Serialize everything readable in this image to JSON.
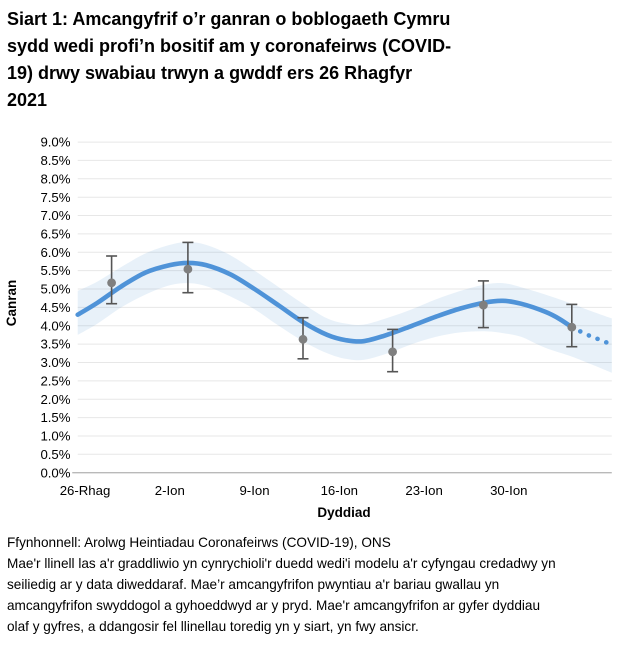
{
  "header": {
    "title_lines": [
      "Siart 1: Amcangyfrif o’r ganran o boblogaeth Cymru",
      "sydd wedi profi’n bositif am y coronafeirws (COVID-",
      "19) drwy swabiau trwyn a gwddf ers 26 Rhagfyr",
      "2021"
    ]
  },
  "chart_data": {
    "type": "line",
    "title": "Siart 1: Amcangyfrif o’r ganran o boblogaeth Cymru sydd wedi profi’n bositif am y coronafeirws (COVID-19) drwy swabiau trwyn a gwddf ers 26 Rhagfyr 2021",
    "xlabel": "Dyddiad",
    "ylabel": "Canran",
    "ylim": [
      0,
      9
    ],
    "y_tick_step_pct": 0.5,
    "y_tick_labels": [
      "0.0%",
      "0.5%",
      "1.0%",
      "1.5%",
      "2.0%",
      "2.5%",
      "3.0%",
      "3.5%",
      "4.0%",
      "4.5%",
      "5.0%",
      "5.5%",
      "6.0%",
      "6.5%",
      "7.0%",
      "7.5%",
      "8.0%",
      "8.5%",
      "9.0%"
    ],
    "x_ticks": [
      {
        "day": 0,
        "label": "26-Rhag"
      },
      {
        "day": 7,
        "label": "2-Ion"
      },
      {
        "day": 14,
        "label": "9-Ion"
      },
      {
        "day": 21,
        "label": "16-Ion"
      },
      {
        "day": 28,
        "label": "23-Ion"
      },
      {
        "day": 35,
        "label": "30-Ion"
      }
    ],
    "x_range_days": [
      -0.6,
      43.5
    ],
    "grid": "horizontal",
    "legend": "none",
    "series": [
      {
        "id": "credible-band",
        "type": "band",
        "points": [
          [
            -0.6,
            3.75,
            4.95
          ],
          [
            1,
            4.05,
            5.2
          ],
          [
            3,
            4.5,
            5.6
          ],
          [
            5,
            4.85,
            5.97
          ],
          [
            7,
            5.1,
            6.2
          ],
          [
            8.5,
            5.16,
            6.28
          ],
          [
            10,
            5.08,
            6.2
          ],
          [
            12,
            4.8,
            5.92
          ],
          [
            14,
            4.45,
            5.5
          ],
          [
            16,
            4.0,
            5.05
          ],
          [
            18,
            3.58,
            4.6
          ],
          [
            20,
            3.25,
            4.2
          ],
          [
            21.5,
            3.1,
            4.06
          ],
          [
            23,
            3.07,
            4.03
          ],
          [
            25,
            3.25,
            4.22
          ],
          [
            27,
            3.5,
            4.45
          ],
          [
            29,
            3.7,
            4.72
          ],
          [
            31,
            3.82,
            4.95
          ],
          [
            33,
            3.85,
            5.12
          ],
          [
            34.5,
            3.8,
            5.16
          ],
          [
            36,
            3.7,
            5.05
          ],
          [
            38,
            3.4,
            4.85
          ],
          [
            40.2,
            3.16,
            4.6
          ],
          [
            41.8,
            2.95,
            4.4
          ],
          [
            43.5,
            2.72,
            4.2
          ]
        ]
      },
      {
        "id": "modelled-trend",
        "type": "line-smooth",
        "points": [
          [
            -0.6,
            4.3
          ],
          [
            1,
            4.62
          ],
          [
            3,
            5.07
          ],
          [
            5,
            5.45
          ],
          [
            7,
            5.65
          ],
          [
            8.5,
            5.71
          ],
          [
            10,
            5.65
          ],
          [
            12,
            5.4
          ],
          [
            14,
            5.0
          ],
          [
            16,
            4.55
          ],
          [
            18,
            4.1
          ],
          [
            20,
            3.75
          ],
          [
            21.5,
            3.61
          ],
          [
            23,
            3.58
          ],
          [
            25,
            3.76
          ],
          [
            27,
            4.0
          ],
          [
            29,
            4.25
          ],
          [
            31,
            4.47
          ],
          [
            33,
            4.63
          ],
          [
            34.5,
            4.68
          ],
          [
            36,
            4.6
          ],
          [
            38,
            4.38
          ],
          [
            39.2,
            4.18
          ],
          [
            40.2,
            3.96
          ]
        ]
      },
      {
        "id": "modelled-trend-projection",
        "type": "line-smooth-dotted",
        "points": [
          [
            40.2,
            3.96
          ],
          [
            41.5,
            3.75
          ],
          [
            42.5,
            3.62
          ],
          [
            43.4,
            3.5
          ]
        ]
      },
      {
        "id": "official-point-estimates",
        "type": "scatter-error",
        "points": [
          {
            "day": 2.2,
            "value": 5.17,
            "lo": 4.6,
            "hi": 5.9
          },
          {
            "day": 8.5,
            "value": 5.54,
            "lo": 4.9,
            "hi": 6.27
          },
          {
            "day": 18.0,
            "value": 3.63,
            "lo": 3.1,
            "hi": 4.22
          },
          {
            "day": 25.4,
            "value": 3.29,
            "lo": 2.75,
            "hi": 3.9
          },
          {
            "day": 32.9,
            "value": 4.56,
            "lo": 3.95,
            "hi": 5.22
          },
          {
            "day": 40.2,
            "value": 3.96,
            "lo": 3.43,
            "hi": 4.58
          }
        ]
      }
    ],
    "colors": {
      "trend_line": "#4f93d8",
      "credible_band": "#5b9bd5",
      "band_opacity": "0.14",
      "point": "#7f7f7f",
      "error_bar": "#555555",
      "gridline": "#e7e7e7",
      "axis_line": "#b9b9b9",
      "text": "#000000"
    }
  },
  "footer": {
    "source": "Ffynhonnell: Arolwg Heintiadau Coronafeirws (COVID-19), ONS",
    "note": "Mae'r llinell las a'r graddliwio yn cynrychioli'r duedd wedi'i modelu a'r cyfyngau credadwy yn seiliedig ar y data diweddaraf. Mae’r amcangyfrifon pwyntiau a'r bariau gwallau yn amcangyfrifon swyddogol a gyhoeddwyd ar y pryd. Mae'r amcangyfrifon ar gyfer dyddiau olaf y gyfres, a ddangosir fel llinellau toredig yn y siart, yn fwy ansicr."
  }
}
